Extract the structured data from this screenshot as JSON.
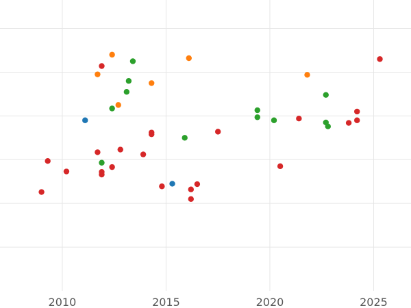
{
  "chart_data": {
    "type": "scatter",
    "title": "",
    "xlabel": "",
    "ylabel": "",
    "xlim": [
      2007.0,
      2026.8
    ],
    "ylim": [
      0,
      6.65
    ],
    "x_ticks": [
      2010,
      2015,
      2020,
      2025
    ],
    "x_tick_labels": [
      "2010",
      "2015",
      "2020",
      "2025"
    ],
    "y_gridlines": [
      1,
      2,
      3,
      4,
      5,
      6
    ],
    "grid": true,
    "legend": "none",
    "series": [
      {
        "color": "#1f77b4",
        "points": [
          {
            "x": 2011.1,
            "y": 3.9
          },
          {
            "x": 2015.3,
            "y": 2.45
          }
        ]
      },
      {
        "color": "#ff7f0e",
        "points": [
          {
            "x": 2011.7,
            "y": 4.95
          },
          {
            "x": 2012.4,
            "y": 5.4
          },
          {
            "x": 2012.7,
            "y": 4.25
          },
          {
            "x": 2014.3,
            "y": 4.75
          },
          {
            "x": 2016.1,
            "y": 5.32
          },
          {
            "x": 2021.8,
            "y": 4.94
          }
        ]
      },
      {
        "color": "#2ca02c",
        "points": [
          {
            "x": 2011.9,
            "y": 2.93
          },
          {
            "x": 2012.4,
            "y": 4.17
          },
          {
            "x": 2013.1,
            "y": 4.55
          },
          {
            "x": 2013.2,
            "y": 4.8
          },
          {
            "x": 2013.4,
            "y": 5.25
          },
          {
            "x": 2015.9,
            "y": 3.5
          },
          {
            "x": 2019.4,
            "y": 4.13
          },
          {
            "x": 2019.4,
            "y": 3.97
          },
          {
            "x": 2020.2,
            "y": 3.9
          },
          {
            "x": 2022.7,
            "y": 4.48
          },
          {
            "x": 2022.7,
            "y": 3.85
          },
          {
            "x": 2022.8,
            "y": 3.76
          }
        ]
      },
      {
        "color": "#d62728",
        "points": [
          {
            "x": 2009.0,
            "y": 2.26
          },
          {
            "x": 2009.3,
            "y": 2.97
          },
          {
            "x": 2010.2,
            "y": 2.73
          },
          {
            "x": 2011.7,
            "y": 3.17
          },
          {
            "x": 2011.9,
            "y": 5.14
          },
          {
            "x": 2011.9,
            "y": 2.72
          },
          {
            "x": 2011.9,
            "y": 2.66
          },
          {
            "x": 2012.4,
            "y": 2.83
          },
          {
            "x": 2012.8,
            "y": 3.23
          },
          {
            "x": 2013.9,
            "y": 3.12
          },
          {
            "x": 2014.3,
            "y": 3.62
          },
          {
            "x": 2014.3,
            "y": 3.58
          },
          {
            "x": 2014.8,
            "y": 2.39
          },
          {
            "x": 2016.2,
            "y": 2.32
          },
          {
            "x": 2016.2,
            "y": 2.1
          },
          {
            "x": 2016.5,
            "y": 2.44
          },
          {
            "x": 2017.5,
            "y": 3.64
          },
          {
            "x": 2020.5,
            "y": 2.85
          },
          {
            "x": 2021.4,
            "y": 3.94
          },
          {
            "x": 2023.8,
            "y": 3.84
          },
          {
            "x": 2024.2,
            "y": 4.1
          },
          {
            "x": 2024.2,
            "y": 3.9
          },
          {
            "x": 2025.3,
            "y": 5.3
          }
        ]
      }
    ]
  }
}
